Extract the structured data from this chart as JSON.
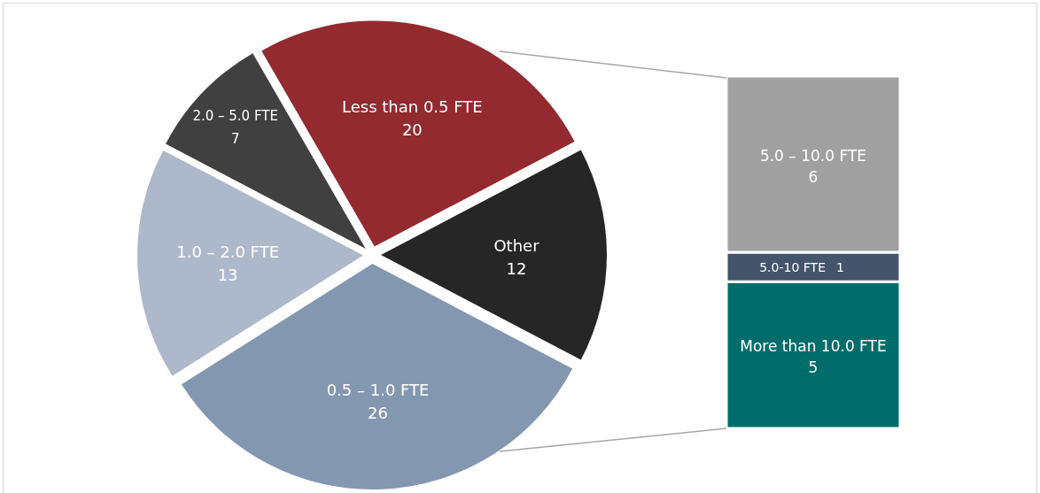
{
  "chart_data": [
    {
      "type": "pie",
      "categories": [
        "Less than 0.5 FTE",
        "Other",
        "0.5 – 1.0 FTE",
        "1.0 – 2.0 FTE",
        "2.0 – 5.0 FTE"
      ],
      "values": [
        20,
        12,
        26,
        13,
        7
      ],
      "colors": [
        "#922a2f",
        "#262626",
        "#8497b0",
        "#adb9ca",
        "#404040"
      ],
      "data_labels": true
    },
    {
      "type": "bar",
      "stacked": true,
      "categories": [
        null
      ],
      "data_labels": true,
      "series": [
        {
          "name": "More than 10.0 FTE",
          "color": "#006d6a",
          "values": [
            5
          ]
        },
        {
          "name": "5.0-10 FTE",
          "color": "#44546a",
          "values": [
            1
          ]
        },
        {
          "name": "5.0 – 10.0 FTE",
          "color": "#a0a0a0",
          "values": [
            6
          ]
        }
      ]
    }
  ]
}
